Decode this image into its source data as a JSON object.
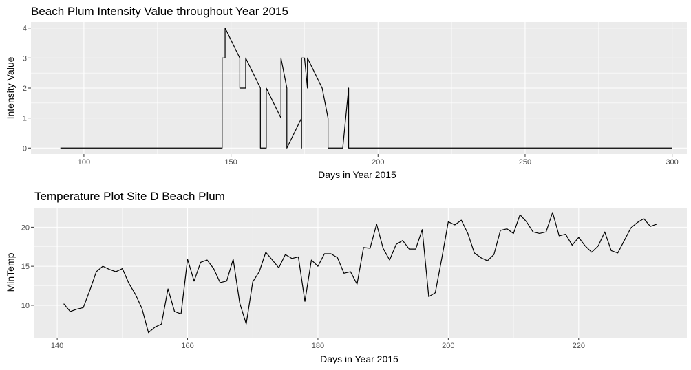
{
  "chart_data": [
    {
      "type": "line",
      "title": "Beach Plum Intensity Value throughout Year 2015",
      "xlabel": "Days in Year 2015",
      "ylabel": "Intensity Value",
      "xlim": [
        82,
        305
      ],
      "ylim": [
        -0.2,
        4.2
      ],
      "xticks": [
        100,
        150,
        200,
        250,
        300
      ],
      "yticks": [
        0,
        1,
        2,
        3,
        4
      ],
      "grid": true,
      "legend": "none",
      "series": [
        {
          "x": [
            92,
            146,
            147,
            147,
            148,
            148,
            153,
            153,
            155,
            155,
            160,
            160,
            162,
            162,
            167,
            167,
            169,
            169,
            174,
            174,
            174,
            175,
            176,
            176,
            181,
            183,
            183,
            188,
            188,
            190,
            190,
            300
          ],
          "y": [
            0,
            0,
            0,
            3,
            3,
            4,
            3,
            2,
            2,
            3,
            2,
            0,
            0,
            2,
            1,
            3,
            2,
            0,
            1,
            0,
            3,
            3,
            2,
            3,
            2,
            1,
            0,
            0,
            0,
            2,
            0,
            0
          ]
        }
      ]
    },
    {
      "type": "line",
      "title": "Temperature Plot Site D Beach Plum",
      "xlabel": "Days in Year 2015",
      "ylabel": "MinTemp",
      "xlim": [
        136.4,
        236.6
      ],
      "ylim": [
        5.85,
        22.5
      ],
      "xticks": [
        140,
        160,
        180,
        200,
        220
      ],
      "yticks": [
        10,
        15,
        20
      ],
      "grid": true,
      "legend": "none",
      "series": [
        {
          "x": [
            141,
            142,
            143,
            144,
            145,
            146,
            147,
            148,
            149,
            150,
            151,
            152,
            153,
            154,
            155,
            156,
            157,
            158,
            159,
            160,
            161,
            162,
            163,
            164,
            165,
            166,
            167,
            168,
            169,
            170,
            171,
            172,
            173,
            174,
            175,
            176,
            177,
            178,
            179,
            180,
            181,
            182,
            183,
            184,
            185,
            186,
            187,
            188,
            189,
            190,
            191,
            192,
            193,
            194,
            195,
            196,
            197,
            198,
            199,
            200,
            201,
            202,
            203,
            204,
            205,
            206,
            207,
            208,
            209,
            210,
            211,
            212,
            213,
            214,
            215,
            216,
            217,
            218,
            219,
            220,
            221,
            222,
            223,
            224,
            225,
            226,
            227,
            228,
            229,
            230,
            231,
            232
          ],
          "y": [
            10.2,
            9.2,
            9.5,
            9.7,
            11.9,
            14.3,
            15.0,
            14.6,
            14.3,
            14.7,
            12.8,
            11.4,
            9.6,
            6.5,
            7.2,
            7.6,
            12.1,
            9.2,
            8.9,
            15.9,
            13.1,
            15.5,
            15.8,
            14.7,
            12.9,
            13.1,
            15.9,
            10.3,
            7.6,
            13.0,
            14.3,
            16.8,
            15.8,
            14.8,
            16.5,
            16.0,
            16.2,
            10.5,
            15.8,
            15.0,
            16.6,
            16.6,
            16.1,
            14.1,
            14.3,
            12.7,
            17.4,
            17.3,
            20.4,
            17.3,
            15.8,
            17.8,
            18.3,
            17.2,
            17.2,
            19.7,
            11.1,
            11.6,
            16.0,
            20.7,
            20.3,
            20.9,
            19.2,
            16.7,
            16.1,
            15.7,
            16.5,
            19.6,
            19.8,
            19.2,
            21.6,
            20.7,
            19.4,
            19.2,
            19.4,
            21.9,
            18.9,
            19.1,
            17.7,
            18.7,
            17.6,
            16.8,
            17.6,
            19.4,
            17.0,
            16.7,
            18.3,
            19.9,
            20.6,
            21.1,
            20.1,
            20.4
          ]
        }
      ]
    }
  ]
}
